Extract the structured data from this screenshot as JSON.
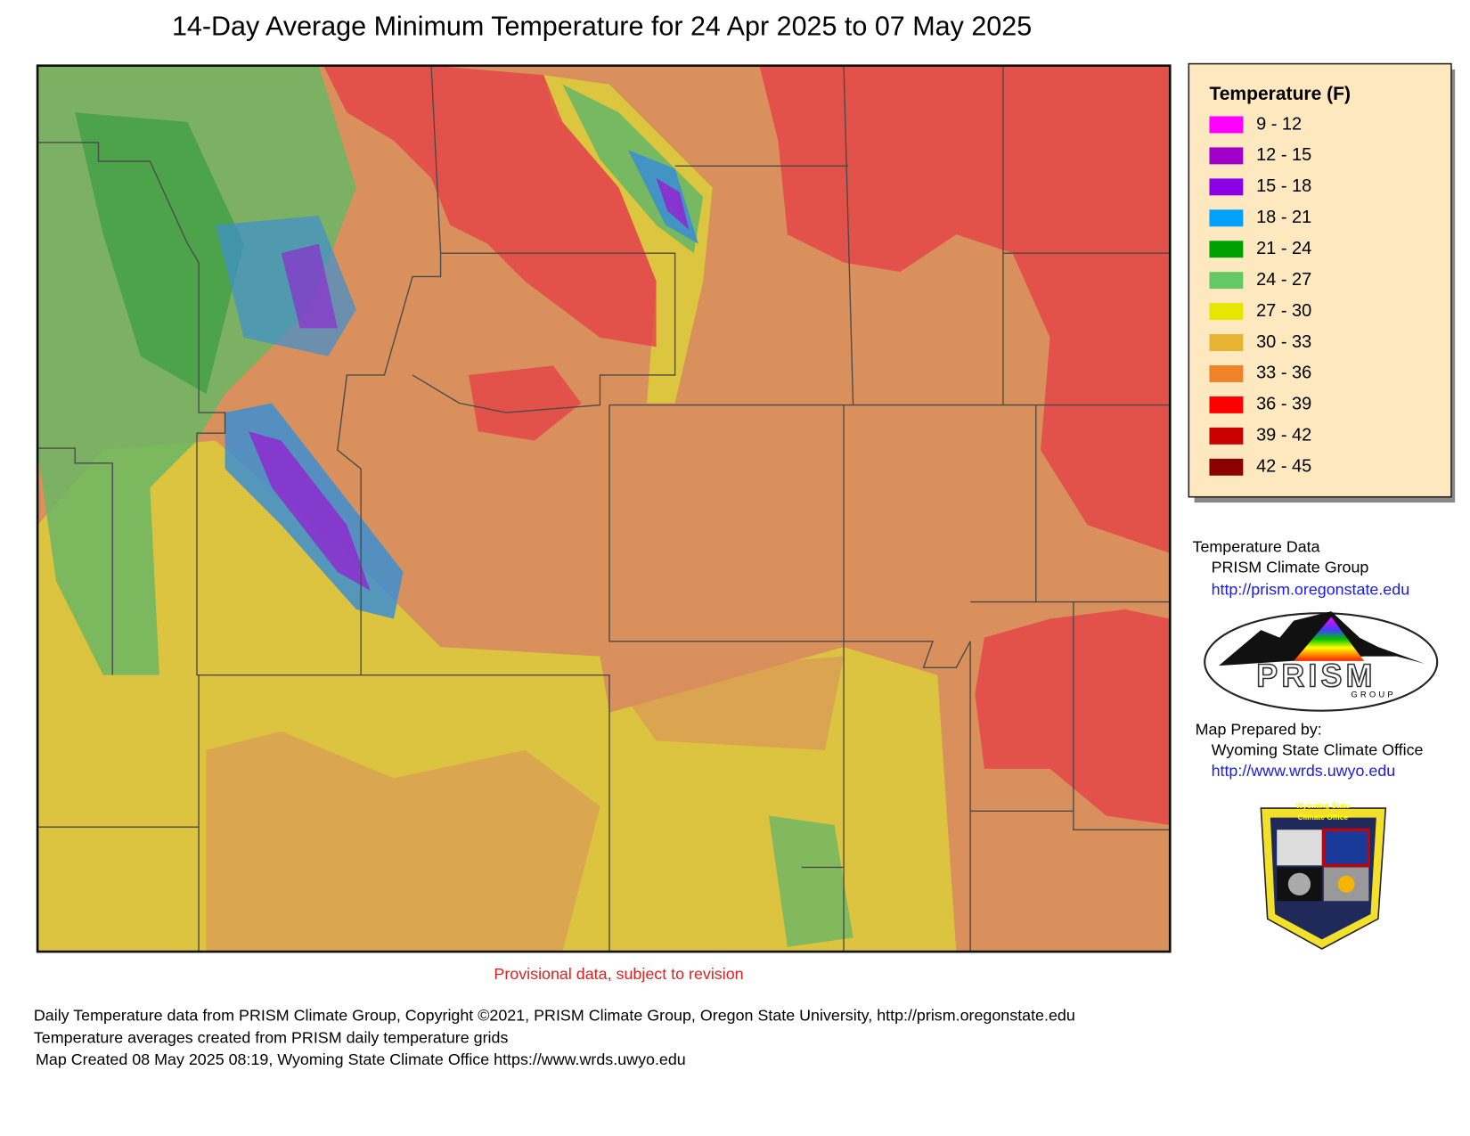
{
  "title": "14-Day Average Minimum Temperature for 24 Apr 2025 to 07 May 2025",
  "legend": {
    "title": "Temperature (F)",
    "items": [
      {
        "label": "9 - 12",
        "color": "#ff00ff"
      },
      {
        "label": "12 - 15",
        "color": "#a000c8"
      },
      {
        "label": "15 - 18",
        "color": "#8c00e6"
      },
      {
        "label": "18 - 21",
        "color": "#00a0ff"
      },
      {
        "label": "21 - 24",
        "color": "#00a000"
      },
      {
        "label": "24 - 27",
        "color": "#64c864"
      },
      {
        "label": "27 - 30",
        "color": "#e6e600"
      },
      {
        "label": "30 - 33",
        "color": "#e6b432"
      },
      {
        "label": "33 - 36",
        "color": "#f08228"
      },
      {
        "label": "36 - 39",
        "color": "#ff0000"
      },
      {
        "label": "39 - 42",
        "color": "#c80000"
      },
      {
        "label": "42 - 45",
        "color": "#8b0000"
      }
    ]
  },
  "provisional_note": "Provisional data, subject to revision",
  "credits": {
    "data_heading": "Temperature Data",
    "data_source": "PRISM Climate Group",
    "data_url": "http://prism.oregonstate.edu",
    "prepared_heading": "Map Prepared by:",
    "prepared_by": "Wyoming State Climate Office",
    "prepared_url": "http://www.wrds.uwyo.edu"
  },
  "logos": {
    "prism_name": "PRISM",
    "prism_group": "GROUP",
    "wsco_line1": "Wyoming State",
    "wsco_line2": "Climate Office"
  },
  "footer": [
    "Daily Temperature data from PRISM Climate Group, Copyright ©2021, PRISM Climate Group, Oregon State University, http://prism.oregonstate.edu",
    "Temperature averages created from PRISM daily temperature grids",
    "Map Created 08 May 2025 08:19, Wyoming State Climate Office https://www.wrds.uwyo.edu"
  ]
}
